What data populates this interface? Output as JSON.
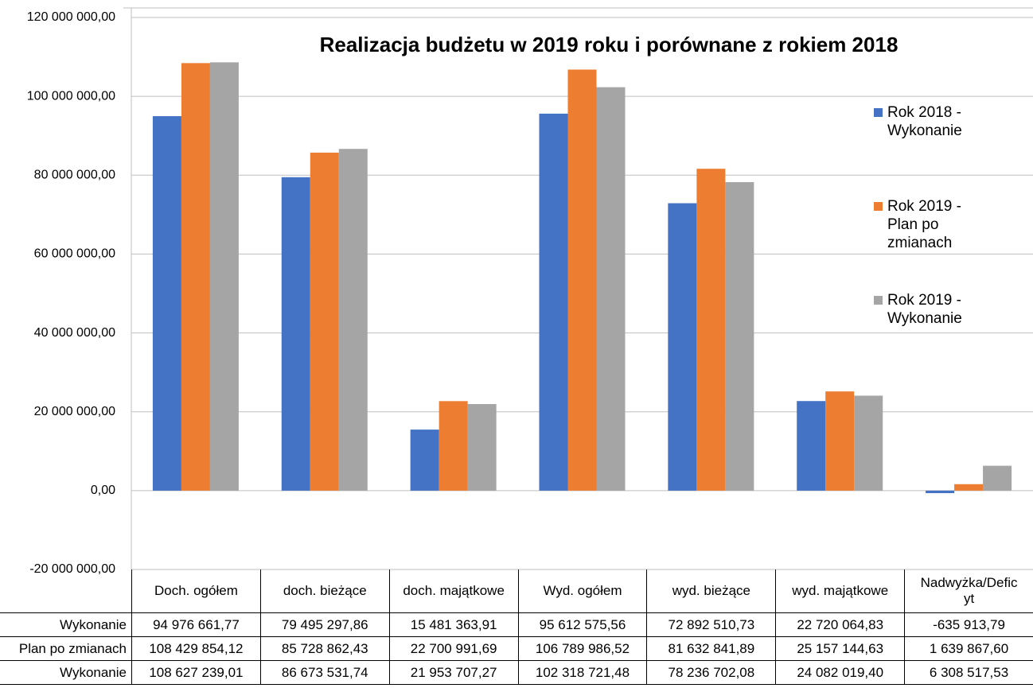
{
  "chart_data": {
    "type": "bar",
    "title": "Realizacja budżetu w 2019 roku i porównane z rokiem 2018",
    "categories": [
      "Doch. ogółem",
      "doch. bieżące",
      "doch. majątkowe",
      "Wyd. ogółem",
      "wyd. bieżące",
      "wyd. majątkowe",
      "Nadwyżka/Deficyt"
    ],
    "series": [
      {
        "name": "Rok 2018 - Wykonanie",
        "color": "#4472c4",
        "values": [
          94976661.77,
          79495297.86,
          15481363.91,
          95612575.56,
          72892510.73,
          22720064.83,
          -635913.79
        ],
        "value_labels": [
          "94 976 661,77",
          "79 495 297,86",
          "15 481 363,91",
          "95 612 575,56",
          "72 892 510,73",
          "22 720 064,83",
          "-635 913,79"
        ]
      },
      {
        "name": "Rok 2019 - Plan po zmianach",
        "color": "#ed7d31",
        "values": [
          108429854.12,
          85728862.43,
          22700991.69,
          106789986.52,
          81632841.89,
          25157144.63,
          1639867.6
        ],
        "value_labels": [
          "108 429 854,12",
          "85 728 862,43",
          "22 700 991,69",
          "106 789 986,52",
          "81 632 841,89",
          "25 157 144,63",
          "1 639 867,60"
        ]
      },
      {
        "name": "Rok 2019 - Wykonanie",
        "color": "#a5a5a5",
        "values": [
          108627239.01,
          86673531.74,
          21953707.27,
          102318721.48,
          78236702.08,
          24082019.4,
          6308517.53
        ],
        "value_labels": [
          "108 627 239,01",
          "86 673 531,74",
          "21 953 707,27",
          "102 318 721,48",
          "78 236 702,08",
          "24 082 019,40",
          "6 308 517,53"
        ]
      }
    ],
    "table_row_labels": [
      "Wykonanie",
      "Plan po zmianach",
      "Wykonanie"
    ],
    "ylim": [
      -20000000,
      120000000
    ],
    "yticks": [
      {
        "value": -20000000,
        "label": "-20 000 000,00"
      },
      {
        "value": 0,
        "label": "0,00"
      },
      {
        "value": 20000000,
        "label": "20 000 000,00"
      },
      {
        "value": 40000000,
        "label": "40 000 000,00"
      },
      {
        "value": 60000000,
        "label": "60 000 000,00"
      },
      {
        "value": 80000000,
        "label": "80 000 000,00"
      },
      {
        "value": 100000000,
        "label": "100 000 000,00"
      },
      {
        "value": 120000000,
        "label": "120 000 000,00"
      }
    ],
    "grid": true,
    "legend": "right"
  }
}
